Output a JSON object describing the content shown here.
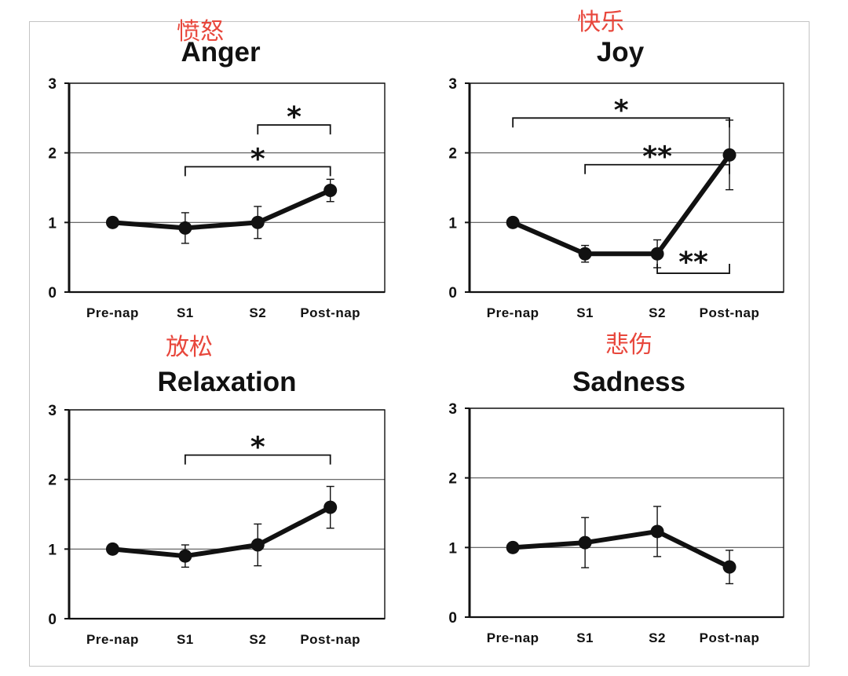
{
  "colors": {
    "line": "#111111",
    "annotation": "#e8473c",
    "frame_border": "#c4c4c4",
    "gridline": "#555555"
  },
  "chart_data": [
    {
      "type": "line",
      "title": "Anger",
      "annotation": "愤怒",
      "categories": [
        "Pre-nap",
        "S1",
        "S2",
        "Post-nap"
      ],
      "values": [
        1.0,
        0.92,
        1.0,
        1.46
      ],
      "error": [
        0,
        0.22,
        0.23,
        0.16
      ],
      "ylim": [
        0,
        3
      ],
      "yticks": [
        "0",
        "1",
        "2",
        "3"
      ],
      "grid": "horizontal",
      "significance": [
        {
          "from": "S1",
          "to": "Post-nap",
          "y": 1.8,
          "label": "*"
        },
        {
          "from": "S2",
          "to": "Post-nap",
          "y": 2.4,
          "label": "*"
        }
      ]
    },
    {
      "type": "line",
      "title": "Joy",
      "annotation": "快乐",
      "categories": [
        "Pre-nap",
        "S1",
        "S2",
        "Post-nap"
      ],
      "values": [
        1.0,
        0.55,
        0.55,
        1.97
      ],
      "error": [
        0,
        0.12,
        0.2,
        0.5
      ],
      "ylim": [
        0,
        3
      ],
      "yticks": [
        "0",
        "1",
        "2",
        "3"
      ],
      "grid": "horizontal",
      "significance": [
        {
          "from": "Pre-nap",
          "to": "Post-nap",
          "y": 2.5,
          "label": "*"
        },
        {
          "from": "S1",
          "to": "Post-nap",
          "y": 1.83,
          "label": "**"
        },
        {
          "from": "S2",
          "to": "Post-nap",
          "y": 0.27,
          "label": "**",
          "inverted": true
        }
      ]
    },
    {
      "type": "line",
      "title": "Relaxation",
      "annotation": "放松",
      "categories": [
        "Pre-nap",
        "S1",
        "S2",
        "Post-nap"
      ],
      "values": [
        1.0,
        0.9,
        1.06,
        1.6
      ],
      "error": [
        0,
        0.16,
        0.3,
        0.3
      ],
      "ylim": [
        0,
        3
      ],
      "yticks": [
        "0",
        "1",
        "2",
        "3"
      ],
      "grid": "horizontal",
      "significance": [
        {
          "from": "S1",
          "to": "Post-nap",
          "y": 2.35,
          "label": "*"
        }
      ]
    },
    {
      "type": "line",
      "title": "Sadness",
      "annotation": "悲伤",
      "categories": [
        "Pre-nap",
        "S1",
        "S2",
        "Post-nap"
      ],
      "values": [
        1.0,
        1.07,
        1.23,
        0.72
      ],
      "error": [
        0,
        0.36,
        0.36,
        0.24
      ],
      "ylim": [
        0,
        3
      ],
      "yticks": [
        "0",
        "1",
        "2",
        "3"
      ],
      "grid": "horizontal",
      "significance": []
    }
  ]
}
